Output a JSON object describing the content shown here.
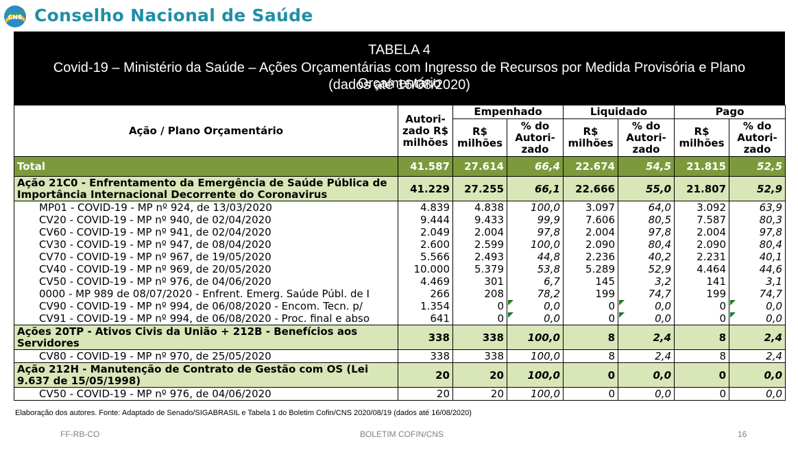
{
  "brand": {
    "name": "Conselho Nacional de Saúde",
    "logo_text": "CNS"
  },
  "title": {
    "line1": "TABELA 4",
    "line2": "Covid-19 – Ministério da Saúde – Ações Orçamentárias com Ingresso de Recursos por Medida Provisória e Plano Orçamentário",
    "line3": "(dados até 16/08/2020)"
  },
  "headers": {
    "acao": "Ação / Plano Orçamentário",
    "autorizado": "Autori-zado R$ milhões",
    "empenhado": "Empenhado",
    "liquidado": "Liquidado",
    "pago": "Pago",
    "rs": "R$ milhões",
    "pct": "% do Autori-zado"
  },
  "total": {
    "label": "Total",
    "aut": "41.587",
    "emp": "27.614",
    "emp_pct": "66,4",
    "liq": "22.674",
    "liq_pct": "54,5",
    "pag": "21.815",
    "pag_pct": "52,5"
  },
  "group1": {
    "label": "Ação 21C0 - Enfrentamento da Emergência de Saúde Pública de Importância Internacional Decorrente do Coronavirus",
    "aut": "41.229",
    "emp": "27.255",
    "emp_pct": "66,1",
    "liq": "22.666",
    "liq_pct": "55,0",
    "pag": "21.807",
    "pag_pct": "52,9",
    "rows": [
      {
        "desc": "MP01 - COVID-19 - MP nº 924, de 13/03/2020",
        "aut": "4.839",
        "emp": "4.838",
        "emp_pct": "100,0",
        "liq": "3.097",
        "liq_pct": "64,0",
        "pag": "3.092",
        "pag_pct": "63,9"
      },
      {
        "desc": "CV20 - COVID-19 - MP nº 940, de 02/04/2020",
        "aut": "9.444",
        "emp": "9.433",
        "emp_pct": "99,9",
        "liq": "7.606",
        "liq_pct": "80,5",
        "pag": "7.587",
        "pag_pct": "80,3"
      },
      {
        "desc": "CV60 - COVID-19 - MP nº 941, de 02/04/2020",
        "aut": "2.049",
        "emp": "2.004",
        "emp_pct": "97,8",
        "liq": "2.004",
        "liq_pct": "97,8",
        "pag": "2.004",
        "pag_pct": "97,8"
      },
      {
        "desc": "CV30 - COVID-19 - MP nº 947, de 08/04/2020",
        "aut": "2.600",
        "emp": "2.599",
        "emp_pct": "100,0",
        "liq": "2.090",
        "liq_pct": "80,4",
        "pag": "2.090",
        "pag_pct": "80,4"
      },
      {
        "desc": "CV70 - COVID-19 - MP nº 967, de 19/05/2020",
        "aut": "5.566",
        "emp": "2.493",
        "emp_pct": "44,8",
        "liq": "2.236",
        "liq_pct": "40,2",
        "pag": "2.231",
        "pag_pct": "40,1"
      },
      {
        "desc": "CV40 - COVID-19 - MP nº 969, de 20/05/2020",
        "aut": "10.000",
        "emp": "5.379",
        "emp_pct": "53,8",
        "liq": "5.289",
        "liq_pct": "52,9",
        "pag": "4.464",
        "pag_pct": "44,6"
      },
      {
        "desc": "CV50 - COVID-19 - MP nº 976, de 04/06/2020",
        "aut": "4.469",
        "emp": "301",
        "emp_pct": "6,7",
        "liq": "145",
        "liq_pct": "3,2",
        "pag": "141",
        "pag_pct": "3,1"
      },
      {
        "desc": "0000 - MP 989 de 08/07/2020 - Enfrent. Emerg. Saúde Públ. de I",
        "aut": "266",
        "emp": "208",
        "emp_pct": "78,2",
        "liq": "199",
        "liq_pct": "74,7",
        "pag": "199",
        "pag_pct": "74,7"
      },
      {
        "desc": "CV90 - COVID-19 - MP nº 994, de 06/08/2020 - Encom. Tecn. p/",
        "aut": "1.354",
        "emp": "0",
        "emp_pct": "0,0",
        "liq": "0",
        "liq_pct": "0,0",
        "pag": "0",
        "pag_pct": "0,0"
      },
      {
        "desc": "CV91 - COVID-19 - MP nº 994, de 06/08/2020 - Proc. final e abso",
        "aut": "641",
        "emp": "0",
        "emp_pct": "0,0",
        "liq": "0",
        "liq_pct": "0,0",
        "pag": "0",
        "pag_pct": "0,0"
      }
    ]
  },
  "group2": {
    "label": "Ações 20TP - Ativos Civis da União + 212B - Benefícios aos Servidores",
    "aut": "338",
    "emp": "338",
    "emp_pct": "100,0",
    "liq": "8",
    "liq_pct": "2,4",
    "pag": "8",
    "pag_pct": "2,4",
    "rows": [
      {
        "desc": "CV80 - COVID-19 - MP nº 970, de 25/05/2020",
        "aut": "338",
        "emp": "338",
        "emp_pct": "100,0",
        "liq": "8",
        "liq_pct": "2,4",
        "pag": "8",
        "pag_pct": "2,4"
      }
    ]
  },
  "group3": {
    "label": "Ação 212H - Manutenção de Contrato de Gestão com OS (Lei 9.637 de 15/05/1998)",
    "aut": "20",
    "emp": "20",
    "emp_pct": "100,0",
    "liq": "0",
    "liq_pct": "0,0",
    "pag": "0",
    "pag_pct": "0,0",
    "rows": [
      {
        "desc": "CV50 - COVID-19 - MP nº 976, de 04/06/2020",
        "aut": "20",
        "emp": "20",
        "emp_pct": "100,0",
        "liq": "0",
        "liq_pct": "0,0",
        "pag": "0",
        "pag_pct": "0,0"
      }
    ]
  },
  "source_note": "Elaboração dos autores. Fonte: Adaptado de Senado/SIGABRASIL e Tabela 1 do Boletim Cofin/CNS 2020/08/19  (dados até 16/08/2020)",
  "footer": {
    "left": "FF-RB-CO",
    "center": "BOLETIM COFIN/CNS",
    "page": "16"
  }
}
